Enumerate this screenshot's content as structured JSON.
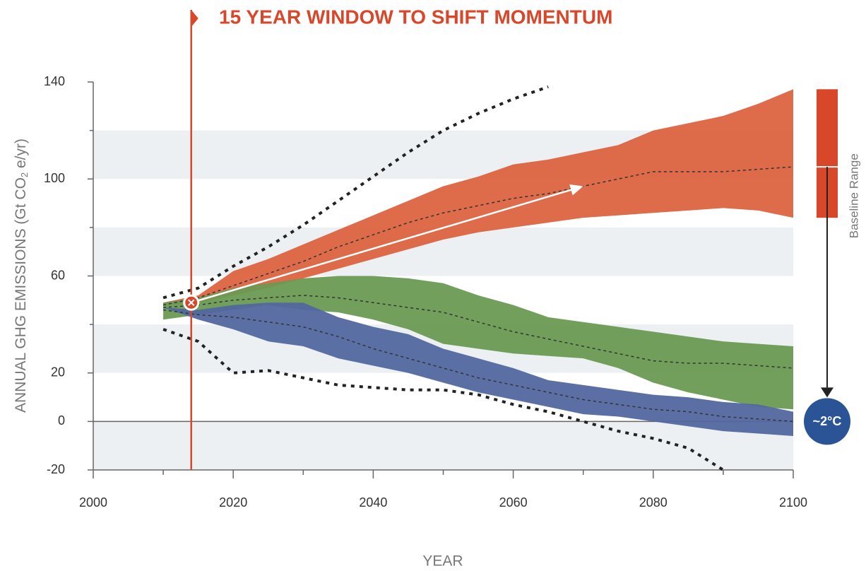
{
  "chart_data": {
    "type": "band",
    "title": "15 YEAR WINDOW TO SHIFT MOMENTUM",
    "title_color": "#d9472b",
    "x_label": "YEAR",
    "y_label": [
      "ANNUAL GHG EMISSIONS (Gt CO",
      "2",
      " e/yr)"
    ],
    "x": [
      2010,
      2015,
      2020,
      2025,
      2030,
      2035,
      2040,
      2045,
      2050,
      2055,
      2060,
      2065,
      2070,
      2075,
      2080,
      2085,
      2090,
      2095,
      2100
    ],
    "xlim": [
      2000,
      2100
    ],
    "xticks": [
      2000,
      2020,
      2040,
      2060,
      2080,
      2100
    ],
    "xticks_minor": [
      2010,
      2030,
      2050,
      2070,
      2090
    ],
    "ylim": [
      -20,
      140
    ],
    "yticks": [
      -20,
      0,
      20,
      60,
      100,
      140
    ],
    "yticks_minor": [
      40,
      80,
      120
    ],
    "grid": true,
    "bands": [
      {
        "color": "#dc6340",
        "upper": [
          49,
          52,
          62,
          67,
          73,
          79,
          85,
          91,
          97,
          101,
          106,
          108,
          111,
          114,
          120,
          123,
          126,
          131,
          137
        ],
        "lower": [
          48,
          49,
          52,
          55,
          59,
          63,
          67,
          71,
          75,
          78,
          80,
          82,
          84,
          85,
          86,
          87,
          88,
          87,
          84
        ],
        "median": [
          48,
          51,
          56,
          61,
          66,
          72,
          77,
          82,
          86,
          89,
          92,
          94,
          97,
          100,
          103,
          103,
          103,
          104,
          105
        ]
      },
      {
        "color": "#6a9a52",
        "upper": [
          49,
          51,
          55,
          57,
          59,
          60,
          60,
          59,
          57,
          52,
          48,
          43,
          41,
          39,
          37,
          35,
          33,
          32,
          31
        ],
        "lower": [
          42,
          44,
          46,
          48,
          46,
          45,
          42,
          38,
          32,
          30,
          28,
          27,
          26,
          22,
          16,
          12,
          9,
          6,
          5
        ],
        "median": [
          47,
          48,
          50,
          51,
          52,
          51,
          49,
          47,
          45,
          41,
          37,
          34,
          31,
          28,
          25,
          24,
          24,
          23,
          22
        ]
      },
      {
        "color": "#52679f",
        "upper": [
          47,
          46,
          48,
          49,
          49,
          43,
          39,
          36,
          30,
          26,
          22,
          17,
          15,
          13,
          11,
          10,
          8,
          7,
          4
        ],
        "lower": [
          47,
          42,
          38,
          33,
          31,
          26,
          23,
          20,
          16,
          12,
          9,
          6,
          3,
          2,
          0,
          -2,
          -4,
          -5,
          -6
        ],
        "median": [
          46,
          44,
          43,
          41,
          39,
          35,
          30,
          26,
          22,
          18,
          15,
          12,
          9,
          7,
          5,
          4,
          2,
          1,
          0
        ]
      }
    ],
    "bounds": [
      {
        "color": "#222222",
        "values": [
          51,
          55,
          64,
          72,
          81,
          91,
          101,
          111,
          120,
          127,
          133,
          138,
          null,
          null,
          null,
          null,
          null,
          null,
          null
        ]
      },
      {
        "color": "#222222",
        "values": [
          38,
          33,
          20,
          21,
          18,
          15,
          14,
          13,
          13,
          11,
          7,
          4,
          0,
          -4,
          -7,
          -11,
          -20,
          null,
          null
        ]
      }
    ],
    "window_start": 2014,
    "window_color": "#d9472b",
    "arrow": {
      "from": [
        2014,
        49
      ],
      "to": [
        2070,
        97
      ]
    },
    "baseline_range": {
      "label": "Baseline Range",
      "high": 137,
      "low": 84,
      "median": 105,
      "color": "#d9472b"
    },
    "target": {
      "label": "~2°C",
      "value": 0,
      "color": "#2a5496"
    }
  }
}
